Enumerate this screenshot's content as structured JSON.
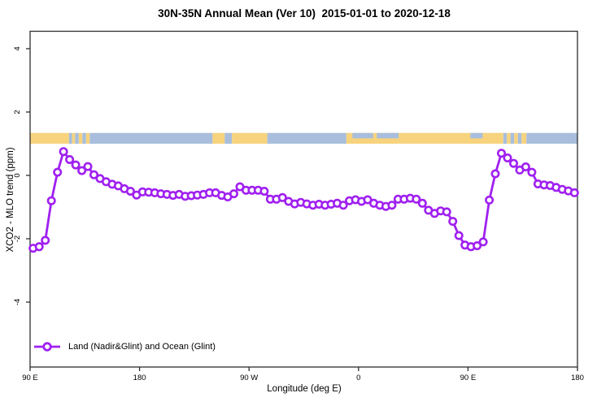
{
  "title": "30N-35N Annual Mean (Ver 10)  2015-01-01 to 2020-12-18",
  "axes": {
    "x_label": "Longitude (deg E)",
    "y_label": "XCO2 - MLO trend (ppm)"
  },
  "legend": {
    "label": "Land (Nadir&Glint) and Ocean (Glint)"
  },
  "colors": {
    "series": "#A020F0",
    "marker_fill": "#ffffff",
    "land": "#F7D37E",
    "ocean": "#A8BEDC",
    "axis": "#2e2e2e",
    "text": "#000000"
  },
  "chart_data": {
    "type": "line",
    "title": "30N-35N Annual Mean (Ver 10)  2015-01-01 to 2020-12-18",
    "xlabel": "Longitude (deg E)",
    "ylabel": "XCO2 - MLO trend (ppm)",
    "xlim": [
      90,
      540
    ],
    "ylim": [
      -6.05,
      4.55
    ],
    "x_ticks": [
      {
        "value": 90,
        "label": "90 E"
      },
      {
        "value": 180,
        "label": "180"
      },
      {
        "value": 270,
        "label": "90 W"
      },
      {
        "value": 360,
        "label": "0"
      },
      {
        "value": 450,
        "label": "90 E"
      },
      {
        "value": 540,
        "label": "180"
      }
    ],
    "y_ticks": [
      {
        "value": -4,
        "label": "-4"
      },
      {
        "value": -2,
        "label": "-2"
      },
      {
        "value": 0,
        "label": "0"
      },
      {
        "value": 2,
        "label": "2"
      },
      {
        "value": 4,
        "label": "4"
      }
    ],
    "grid": false,
    "legend_position": "bottom-left",
    "map_band": {
      "y_range": [
        1.0,
        1.34
      ],
      "segments": [
        {
          "from": 90,
          "to": 122,
          "type": "land"
        },
        {
          "from": 122,
          "to": 124.5,
          "type": "ocean"
        },
        {
          "from": 124.5,
          "to": 127,
          "type": "land"
        },
        {
          "from": 127,
          "to": 130,
          "type": "ocean"
        },
        {
          "from": 130,
          "to": 133,
          "type": "land"
        },
        {
          "from": 133,
          "to": 136,
          "type": "ocean"
        },
        {
          "from": 136,
          "to": 139,
          "type": "land"
        },
        {
          "from": 139,
          "to": 240,
          "type": "ocean"
        },
        {
          "from": 240,
          "to": 250,
          "type": "land"
        },
        {
          "from": 250,
          "to": 256,
          "type": "ocean"
        },
        {
          "from": 256,
          "to": 285,
          "type": "land"
        },
        {
          "from": 285,
          "to": 350,
          "type": "ocean"
        },
        {
          "from": 350,
          "to": 479,
          "type": "land"
        },
        {
          "from": 479,
          "to": 482,
          "type": "ocean"
        },
        {
          "from": 482,
          "to": 485,
          "type": "land"
        },
        {
          "from": 485,
          "to": 488,
          "type": "ocean"
        },
        {
          "from": 488,
          "to": 491,
          "type": "land"
        },
        {
          "from": 491,
          "to": 494,
          "type": "ocean"
        },
        {
          "from": 494,
          "to": 498,
          "type": "land"
        },
        {
          "from": 498,
          "to": 540,
          "type": "ocean"
        }
      ],
      "top_notches": [
        {
          "from": 355,
          "to": 372,
          "type": "ocean"
        },
        {
          "from": 375,
          "to": 393,
          "type": "ocean"
        },
        {
          "from": 452,
          "to": 462,
          "type": "ocean"
        }
      ]
    },
    "series": [
      {
        "name": "Land (Nadir&Glint) and Ocean (Glint)",
        "color": "#A020F0",
        "marker": "open-circle",
        "points": [
          [
            92.5,
            -2.3
          ],
          [
            97.5,
            -2.25
          ],
          [
            102.5,
            -2.05
          ],
          [
            107.5,
            -0.8
          ],
          [
            112.5,
            0.1
          ],
          [
            117.5,
            0.75
          ],
          [
            122.5,
            0.5
          ],
          [
            127.5,
            0.33
          ],
          [
            132.5,
            0.15
          ],
          [
            137.5,
            0.28
          ],
          [
            142.5,
            0.02
          ],
          [
            147.5,
            -0.1
          ],
          [
            152.5,
            -0.2
          ],
          [
            157.5,
            -0.28
          ],
          [
            162.5,
            -0.33
          ],
          [
            167.5,
            -0.42
          ],
          [
            172.5,
            -0.5
          ],
          [
            177.5,
            -0.62
          ],
          [
            182.5,
            -0.52
          ],
          [
            187.5,
            -0.53
          ],
          [
            192.5,
            -0.55
          ],
          [
            197.5,
            -0.58
          ],
          [
            202.5,
            -0.6
          ],
          [
            207.5,
            -0.63
          ],
          [
            212.5,
            -0.6
          ],
          [
            217.5,
            -0.66
          ],
          [
            222.5,
            -0.64
          ],
          [
            227.5,
            -0.62
          ],
          [
            232.5,
            -0.6
          ],
          [
            237.5,
            -0.55
          ],
          [
            242.5,
            -0.55
          ],
          [
            247.5,
            -0.63
          ],
          [
            252.5,
            -0.68
          ],
          [
            257.5,
            -0.58
          ],
          [
            262.5,
            -0.36
          ],
          [
            267.5,
            -0.47
          ],
          [
            272.5,
            -0.47
          ],
          [
            277.5,
            -0.47
          ],
          [
            282.5,
            -0.5
          ],
          [
            287.5,
            -0.75
          ],
          [
            292.5,
            -0.75
          ],
          [
            297.5,
            -0.7
          ],
          [
            302.5,
            -0.82
          ],
          [
            307.5,
            -0.9
          ],
          [
            312.5,
            -0.85
          ],
          [
            317.5,
            -0.9
          ],
          [
            322.5,
            -0.94
          ],
          [
            327.5,
            -0.91
          ],
          [
            332.5,
            -0.94
          ],
          [
            337.5,
            -0.91
          ],
          [
            342.5,
            -0.88
          ],
          [
            347.5,
            -0.94
          ],
          [
            352.5,
            -0.8
          ],
          [
            357.5,
            -0.77
          ],
          [
            362.5,
            -0.82
          ],
          [
            367.5,
            -0.77
          ],
          [
            372.5,
            -0.88
          ],
          [
            377.5,
            -0.94
          ],
          [
            382.5,
            -0.98
          ],
          [
            387.5,
            -0.94
          ],
          [
            392.5,
            -0.75
          ],
          [
            397.5,
            -0.75
          ],
          [
            402.5,
            -0.72
          ],
          [
            407.5,
            -0.75
          ],
          [
            412.5,
            -0.88
          ],
          [
            417.5,
            -1.1
          ],
          [
            422.5,
            -1.2
          ],
          [
            427.5,
            -1.12
          ],
          [
            432.5,
            -1.15
          ],
          [
            437.5,
            -1.45
          ],
          [
            442.5,
            -1.9
          ],
          [
            447.5,
            -2.2
          ],
          [
            452.5,
            -2.25
          ],
          [
            457.5,
            -2.22
          ],
          [
            462.5,
            -2.1
          ],
          [
            467.5,
            -0.78
          ],
          [
            472.5,
            0.05
          ],
          [
            477.5,
            0.7
          ],
          [
            482.5,
            0.55
          ],
          [
            487.5,
            0.38
          ],
          [
            492.5,
            0.17
          ],
          [
            497.5,
            0.27
          ],
          [
            502.5,
            0.1
          ],
          [
            507.5,
            -0.27
          ],
          [
            512.5,
            -0.3
          ],
          [
            517.5,
            -0.32
          ],
          [
            522.5,
            -0.38
          ],
          [
            527.5,
            -0.44
          ],
          [
            532.5,
            -0.49
          ],
          [
            537.5,
            -0.55
          ]
        ]
      }
    ]
  }
}
